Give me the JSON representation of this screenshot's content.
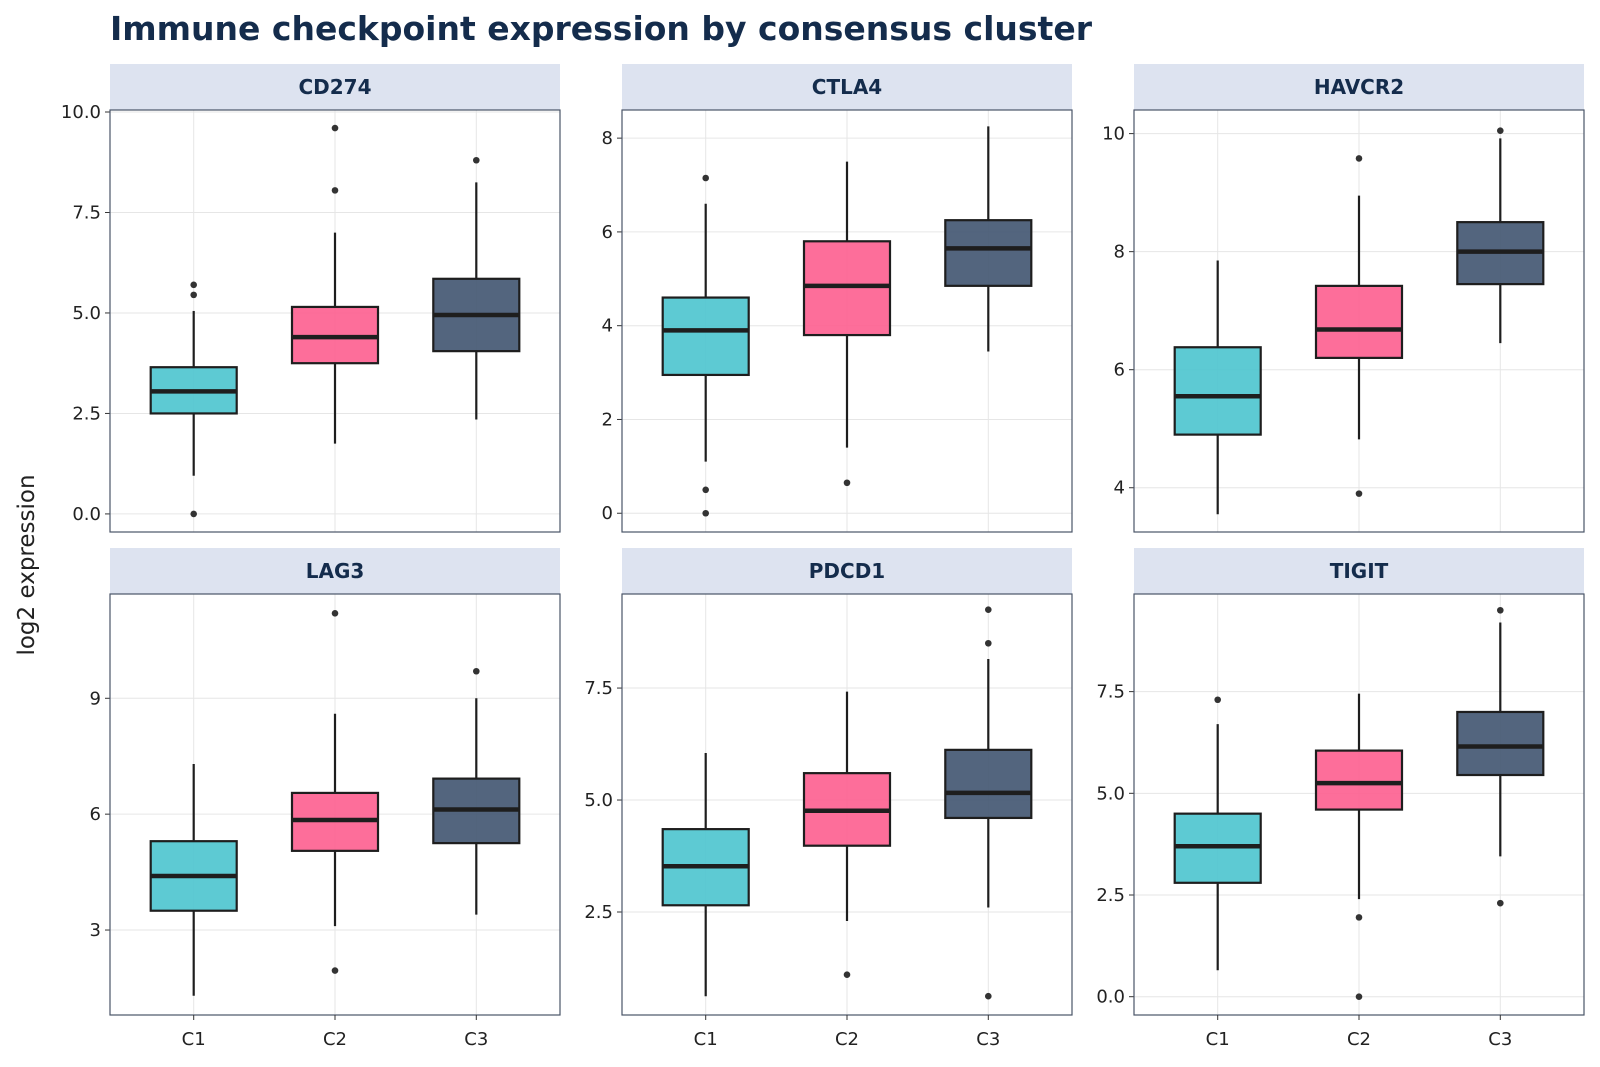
{
  "chart_data": {
    "type": "box",
    "title": "Immune checkpoint expression by consensus cluster",
    "ylabel": "log2 expression",
    "xlabel": "",
    "categories": [
      "C1",
      "C2",
      "C3"
    ],
    "colors": {
      "C1": "#4fc6cf",
      "C2": "#fd6291",
      "C3": "#445873",
      "outlier": "#333333",
      "line": "#1e1e1e"
    },
    "rows": 2,
    "cols": 3,
    "panels": [
      {
        "name": "CD274",
        "ylim": [
          -0.45,
          10.05
        ],
        "yticks": [
          0,
          2.5,
          5,
          7.5,
          10
        ],
        "ytick_labels": [
          "0.0",
          "2.5",
          "5.0",
          "7.5",
          "10.0"
        ],
        "boxes": [
          {
            "cat": "C1",
            "q1": 2.5,
            "median": 3.05,
            "q3": 3.65,
            "whisker_low": 0.95,
            "whisker_high": 5.05,
            "outliers": [
              5.7,
              5.45,
              0.0
            ]
          },
          {
            "cat": "C2",
            "q1": 3.75,
            "median": 4.4,
            "q3": 5.15,
            "whisker_low": 1.75,
            "whisker_high": 7.0,
            "outliers": [
              9.6,
              8.05
            ]
          },
          {
            "cat": "C3",
            "q1": 4.05,
            "median": 4.95,
            "q3": 5.85,
            "whisker_low": 2.35,
            "whisker_high": 8.25,
            "outliers": [
              8.8
            ]
          }
        ]
      },
      {
        "name": "CTLA4",
        "ylim": [
          -0.4,
          8.6
        ],
        "yticks": [
          0,
          2,
          4,
          6,
          8
        ],
        "ytick_labels": [
          "0",
          "2",
          "4",
          "6",
          "8"
        ],
        "boxes": [
          {
            "cat": "C1",
            "q1": 2.95,
            "median": 3.9,
            "q3": 4.6,
            "whisker_low": 1.1,
            "whisker_high": 6.6,
            "outliers": [
              7.15,
              0.5,
              0.0
            ]
          },
          {
            "cat": "C2",
            "q1": 3.8,
            "median": 4.85,
            "q3": 5.8,
            "whisker_low": 1.4,
            "whisker_high": 7.5,
            "outliers": [
              0.65
            ]
          },
          {
            "cat": "C3",
            "q1": 4.85,
            "median": 5.65,
            "q3": 6.25,
            "whisker_low": 3.45,
            "whisker_high": 8.25,
            "outliers": []
          }
        ]
      },
      {
        "name": "HAVCR2",
        "ylim": [
          3.25,
          10.4
        ],
        "yticks": [
          4,
          6,
          8,
          10
        ],
        "ytick_labels": [
          "4",
          "6",
          "8",
          "10"
        ],
        "boxes": [
          {
            "cat": "C1",
            "q1": 4.9,
            "median": 5.55,
            "q3": 6.38,
            "whisker_low": 3.55,
            "whisker_high": 7.85,
            "outliers": []
          },
          {
            "cat": "C2",
            "q1": 6.2,
            "median": 6.68,
            "q3": 7.42,
            "whisker_low": 4.82,
            "whisker_high": 8.95,
            "outliers": [
              9.58,
              3.9
            ]
          },
          {
            "cat": "C3",
            "q1": 7.45,
            "median": 8.0,
            "q3": 8.5,
            "whisker_low": 6.45,
            "whisker_high": 9.92,
            "outliers": [
              10.05
            ]
          }
        ]
      },
      {
        "name": "LAG3",
        "ylim": [
          0.8,
          11.7
        ],
        "yticks": [
          3,
          6,
          9
        ],
        "ytick_labels": [
          "3",
          "6",
          "9"
        ],
        "boxes": [
          {
            "cat": "C1",
            "q1": 3.5,
            "median": 4.4,
            "q3": 5.3,
            "whisker_low": 1.3,
            "whisker_high": 7.3,
            "outliers": []
          },
          {
            "cat": "C2",
            "q1": 5.05,
            "median": 5.85,
            "q3": 6.55,
            "whisker_low": 3.1,
            "whisker_high": 8.6,
            "outliers": [
              11.2,
              1.95
            ]
          },
          {
            "cat": "C3",
            "q1": 5.25,
            "median": 6.12,
            "q3": 6.92,
            "whisker_low": 3.4,
            "whisker_high": 9.0,
            "outliers": [
              9.7
            ]
          }
        ]
      },
      {
        "name": "PDCD1",
        "ylim": [
          0.2,
          9.6
        ],
        "yticks": [
          2.5,
          5,
          7.5
        ],
        "ytick_labels": [
          "2.5",
          "5.0",
          "7.5"
        ],
        "boxes": [
          {
            "cat": "C1",
            "q1": 2.65,
            "median": 3.52,
            "q3": 4.35,
            "whisker_low": 0.62,
            "whisker_high": 6.05,
            "outliers": []
          },
          {
            "cat": "C2",
            "q1": 3.98,
            "median": 4.76,
            "q3": 5.6,
            "whisker_low": 2.3,
            "whisker_high": 7.42,
            "outliers": [
              1.1
            ]
          },
          {
            "cat": "C3",
            "q1": 4.6,
            "median": 5.16,
            "q3": 6.12,
            "whisker_low": 2.6,
            "whisker_high": 8.15,
            "outliers": [
              9.25,
              8.5,
              0.62
            ]
          }
        ]
      },
      {
        "name": "TIGIT",
        "ylim": [
          -0.45,
          9.9
        ],
        "yticks": [
          0,
          2.5,
          5,
          7.5
        ],
        "ytick_labels": [
          "0.0",
          "2.5",
          "5.0",
          "7.5"
        ],
        "boxes": [
          {
            "cat": "C1",
            "q1": 2.8,
            "median": 3.7,
            "q3": 4.5,
            "whisker_low": 0.65,
            "whisker_high": 6.7,
            "outliers": [
              7.3
            ]
          },
          {
            "cat": "C2",
            "q1": 4.6,
            "median": 5.25,
            "q3": 6.05,
            "whisker_low": 2.4,
            "whisker_high": 7.45,
            "outliers": [
              1.95,
              0.0
            ]
          },
          {
            "cat": "C3",
            "q1": 5.45,
            "median": 6.15,
            "q3": 7.0,
            "whisker_low": 3.45,
            "whisker_high": 9.2,
            "outliers": [
              9.5,
              2.3
            ]
          }
        ]
      }
    ]
  }
}
